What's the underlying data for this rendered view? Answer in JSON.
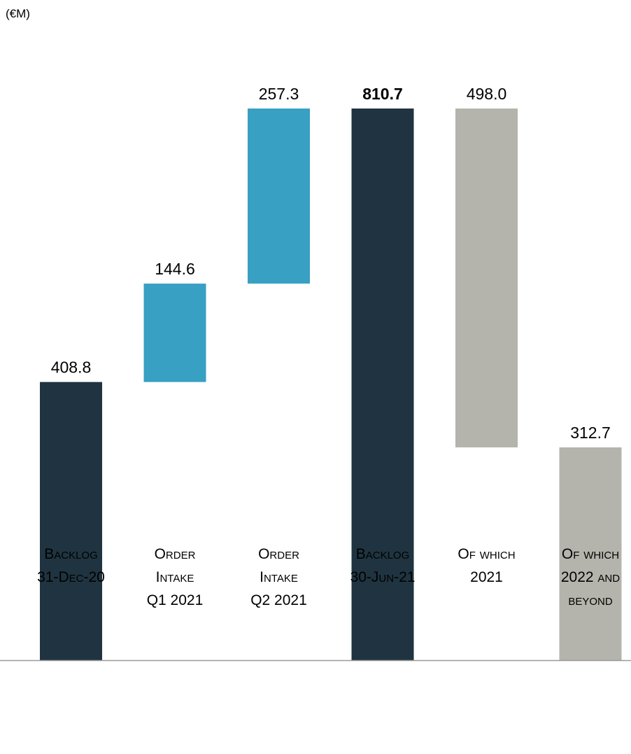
{
  "unit_label": "(€M)",
  "colors": {
    "backlog": "#1f3440",
    "intake": "#38a0c2",
    "split": "#b4b4ac",
    "axis": "#999999"
  },
  "chart_data": {
    "type": "bar",
    "subtype": "waterfall",
    "unit": "€M",
    "ylim": [
      0,
      810.7
    ],
    "grid": false,
    "legend": "none",
    "bars": [
      {
        "category_lines": [
          "Backlog",
          "31-Dec-20"
        ],
        "value": 408.8,
        "base": 0,
        "label": "408.8",
        "kind": "backlog",
        "bold": false
      },
      {
        "category_lines": [
          "Order",
          "Intake",
          "Q1 2021"
        ],
        "value": 144.6,
        "base": 408.8,
        "label": "144.6",
        "kind": "intake",
        "bold": false
      },
      {
        "category_lines": [
          "Order",
          "Intake",
          "Q2 2021"
        ],
        "value": 257.3,
        "base": 553.4,
        "label": "257.3",
        "kind": "intake",
        "bold": false
      },
      {
        "category_lines": [
          "Backlog",
          "30-Jun-21"
        ],
        "value": 810.7,
        "base": 0,
        "label": "810.7",
        "kind": "backlog",
        "bold": true
      },
      {
        "category_lines": [
          "Of which",
          "2021"
        ],
        "value": 498.0,
        "base": 312.7,
        "label": "498.0",
        "kind": "split",
        "bold": false
      },
      {
        "category_lines": [
          "Of which",
          "2022 and",
          "beyond"
        ],
        "value": 312.7,
        "base": 0,
        "label": "312.7",
        "kind": "split",
        "bold": false
      }
    ]
  }
}
